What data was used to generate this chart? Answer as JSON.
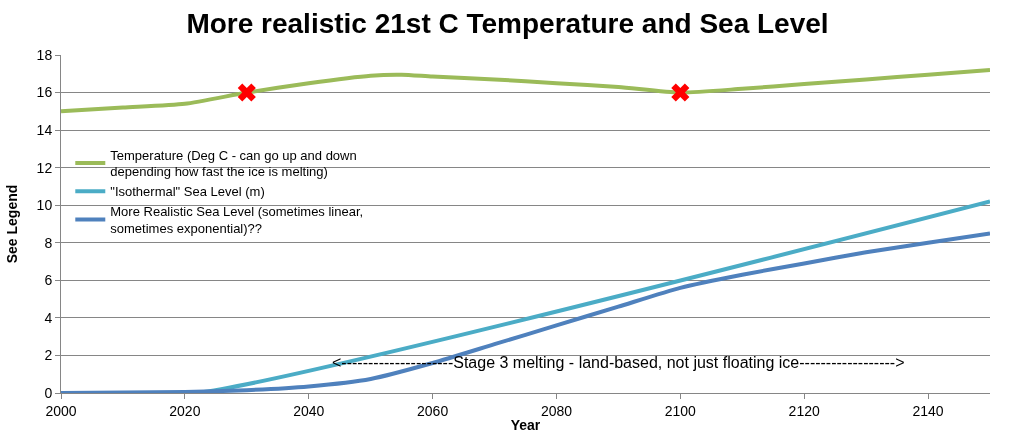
{
  "chart_data": {
    "type": "line",
    "title": "More realistic 21st C Temperature and Sea Level",
    "xlabel": "Year",
    "ylabel": "See Legend",
    "xlim": [
      2000,
      2150
    ],
    "xticks": [
      2000,
      2020,
      2040,
      2060,
      2080,
      2100,
      2120,
      2140
    ],
    "ylim": [
      0,
      18
    ],
    "yticks": [
      0,
      2,
      4,
      6,
      8,
      10,
      12,
      14,
      16,
      18
    ],
    "grid": "y",
    "legend": "left",
    "marker": "none",
    "line_style": "solid",
    "series": [
      {
        "name": "Temperature (Deg C - can go up and down depending how fast the ice is melting)",
        "color": "#9bbb59",
        "x": [
          2000,
          2010,
          2020,
          2030,
          2040,
          2050,
          2055,
          2060,
          2070,
          2080,
          2090,
          2100,
          2110,
          2120,
          2130,
          2140,
          2150
        ],
        "values": [
          15.0,
          15.2,
          15.4,
          16.0,
          16.5,
          16.9,
          16.95,
          16.85,
          16.7,
          16.5,
          16.3,
          16.0,
          16.2,
          16.45,
          16.7,
          16.95,
          17.2
        ]
      },
      {
        "name": "\"Isothermal\" Sea Level (m)",
        "color": "#4bacc6",
        "x": [
          2000,
          2022,
          2150
        ],
        "values": [
          0,
          0,
          10.2
        ]
      },
      {
        "name": "More Realistic Sea Level (sometimes linear, sometimes exponential)??",
        "color": "#4f81bd",
        "x": [
          2000,
          2020,
          2030,
          2040,
          2050,
          2060,
          2070,
          2080,
          2090,
          2100,
          2110,
          2120,
          2130,
          2140,
          2150
        ],
        "values": [
          0,
          0.05,
          0.15,
          0.35,
          0.75,
          1.6,
          2.6,
          3.6,
          4.6,
          5.6,
          6.3,
          6.9,
          7.5,
          8.0,
          8.5
        ]
      },
      {
        "type": "scatter",
        "marker": "cross",
        "color": "#ff0000",
        "x": [
          2030,
          2100
        ],
        "values": [
          16.0,
          16.0
        ]
      }
    ],
    "annotations": [
      "<---------------------Stage 3 melting - land-based, not just floating ice------------------>"
    ]
  }
}
